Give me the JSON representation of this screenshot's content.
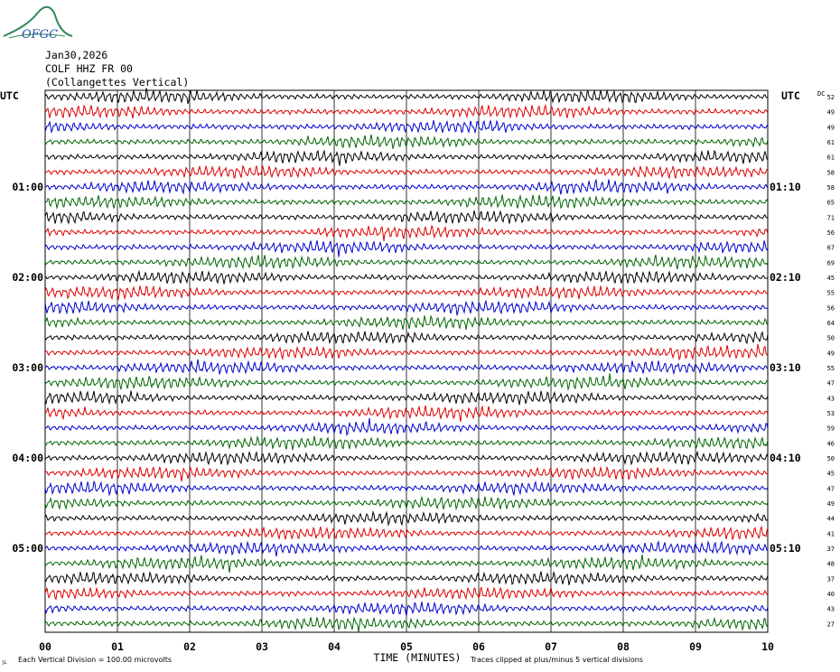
{
  "header": {
    "logo_text": "OFGC",
    "date": "Jan30,2026",
    "station": "COLF HHZ FR 00",
    "location": "(Collangettes Vertical)"
  },
  "colors": {
    "trace_cycle": [
      "#000000",
      "#dd0000",
      "#0000cc",
      "#006600"
    ],
    "grid": "#000000",
    "logo": "#2e8b57",
    "logo_text": "#1f4fa8"
  },
  "chart_data": {
    "type": "line",
    "title": "Jan30,2026",
    "subtitle": "COLF HHZ FR 00 (Collangettes Vertical)",
    "xlabel": "TIME (MINUTES)",
    "xlim": [
      0,
      10
    ],
    "x_ticks": [
      "00",
      "01",
      "02",
      "03",
      "04",
      "05",
      "06",
      "07",
      "08",
      "09",
      "10"
    ],
    "left_axis_label": "UTC",
    "right_axis_label": "UTC",
    "dc_label": "DC",
    "left_time_labels": [
      {
        "line": 6,
        "label": "01:00"
      },
      {
        "line": 12,
        "label": "02:00"
      },
      {
        "line": 18,
        "label": "03:00"
      },
      {
        "line": 24,
        "label": "04:00"
      },
      {
        "line": 30,
        "label": "05:00"
      }
    ],
    "right_time_labels": [
      {
        "line": 6,
        "label": "01:10"
      },
      {
        "line": 12,
        "label": "02:10"
      },
      {
        "line": 18,
        "label": "03:10"
      },
      {
        "line": 24,
        "label": "04:10"
      },
      {
        "line": 30,
        "label": "05:10"
      }
    ],
    "trace_count": 36,
    "dc_offsets": [
      52,
      49,
      49,
      61,
      61,
      58,
      58,
      65,
      71,
      56,
      67,
      69,
      45,
      55,
      56,
      64,
      50,
      49,
      55,
      47,
      43,
      53,
      59,
      46,
      50,
      45,
      47,
      49,
      44,
      41,
      37,
      48,
      37,
      40,
      43,
      27
    ],
    "footer_scale": "Each Vertical Division =  100.00 microvolts",
    "footer_clip": "Traces clipped at plus/minus 5 vertical divisions",
    "corner_mark": "JL",
    "grid": true
  }
}
